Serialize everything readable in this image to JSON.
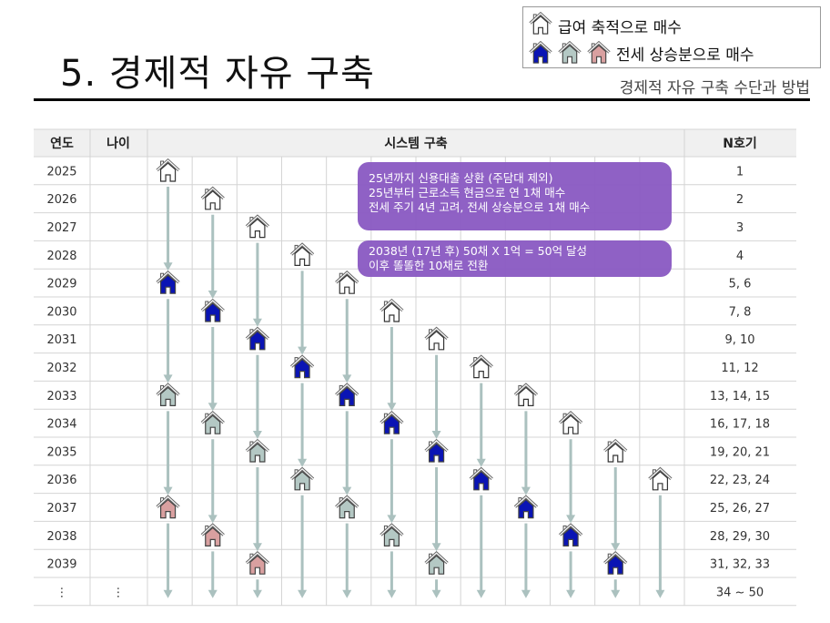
{
  "title": "5. 경제적 자유 구축",
  "subtitle": "경제적 자유 구축 수단과 방법",
  "legend": [
    {
      "icons": [
        "white"
      ],
      "label": "급여 축적으로 매수"
    },
    {
      "icons": [
        "blue",
        "gray",
        "pink"
      ],
      "label": "전세 상승분으로 매수"
    }
  ],
  "colors": {
    "white": "#ffffff",
    "blue": "#0a14b4",
    "gray": "#b4c8c4",
    "pink": "#d9a0a0",
    "arrow": "#abc1bf",
    "callout": "#8c5cc4",
    "header_bg": "#f0f0f0",
    "gridline": "#d4d4d4"
  },
  "table": {
    "headers": {
      "year": "연도",
      "age": "나이",
      "system": "시스템 구축",
      "n": "N호기"
    },
    "rows": [
      {
        "year": "2025",
        "age": "",
        "n": "1"
      },
      {
        "year": "2026",
        "age": "",
        "n": "2"
      },
      {
        "year": "2027",
        "age": "",
        "n": "3"
      },
      {
        "year": "2028",
        "age": "",
        "n": "4"
      },
      {
        "year": "2029",
        "age": "",
        "n": "5, 6"
      },
      {
        "year": "2030",
        "age": "",
        "n": "7, 8"
      },
      {
        "year": "2031",
        "age": "",
        "n": "9, 10"
      },
      {
        "year": "2032",
        "age": "",
        "n": "11, 12"
      },
      {
        "year": "2033",
        "age": "",
        "n": "13, 14, 15"
      },
      {
        "year": "2034",
        "age": "",
        "n": "16, 17, 18"
      },
      {
        "year": "2035",
        "age": "",
        "n": "19, 20, 21"
      },
      {
        "year": "2036",
        "age": "",
        "n": "22, 23, 24"
      },
      {
        "year": "2037",
        "age": "",
        "n": "25, 26, 27"
      },
      {
        "year": "2038",
        "age": "",
        "n": "28, 29, 30"
      },
      {
        "year": "2039",
        "age": "",
        "n": "31, 32, 33"
      },
      {
        "year": "⋮",
        "age": "⋮",
        "n": "34 ~ 50"
      }
    ],
    "system_columns": [
      [
        {
          "year": "2025",
          "type": "white"
        },
        {
          "year": "2029",
          "type": "blue"
        },
        {
          "year": "2033",
          "type": "gray"
        },
        {
          "year": "2037",
          "type": "pink"
        }
      ],
      [
        {
          "year": "2026",
          "type": "white"
        },
        {
          "year": "2030",
          "type": "blue"
        },
        {
          "year": "2034",
          "type": "gray"
        },
        {
          "year": "2038",
          "type": "pink"
        }
      ],
      [
        {
          "year": "2027",
          "type": "white"
        },
        {
          "year": "2031",
          "type": "blue"
        },
        {
          "year": "2035",
          "type": "gray"
        },
        {
          "year": "2039",
          "type": "pink"
        }
      ],
      [
        {
          "year": "2028",
          "type": "white"
        },
        {
          "year": "2032",
          "type": "blue"
        },
        {
          "year": "2036",
          "type": "gray"
        }
      ],
      [
        {
          "year": "2029",
          "type": "white"
        },
        {
          "year": "2033",
          "type": "blue"
        },
        {
          "year": "2037",
          "type": "gray"
        }
      ],
      [
        {
          "year": "2030",
          "type": "white"
        },
        {
          "year": "2034",
          "type": "blue"
        },
        {
          "year": "2038",
          "type": "gray"
        }
      ],
      [
        {
          "year": "2031",
          "type": "white"
        },
        {
          "year": "2035",
          "type": "blue"
        },
        {
          "year": "2039",
          "type": "gray"
        }
      ],
      [
        {
          "year": "2032",
          "type": "white"
        },
        {
          "year": "2036",
          "type": "blue"
        }
      ],
      [
        {
          "year": "2033",
          "type": "white"
        },
        {
          "year": "2037",
          "type": "blue"
        }
      ],
      [
        {
          "year": "2034",
          "type": "white"
        },
        {
          "year": "2038",
          "type": "blue"
        }
      ],
      [
        {
          "year": "2035",
          "type": "white"
        },
        {
          "year": "2039",
          "type": "blue"
        }
      ],
      [
        {
          "year": "2036",
          "type": "white"
        }
      ]
    ]
  },
  "callouts": [
    {
      "lines": [
        "25년까지 신용대출 상환 (주담대 제외)",
        "25년부터 근로소득 현금으로 연 1채 매수",
        "전세 주기 4년 고려, 전세 상승분으로 1채 매수"
      ]
    },
    {
      "lines": [
        "2038년 (17년  후) 50채 X 1억 = 50억 달성",
        "이후 똘똘한 10채로 전환"
      ]
    }
  ]
}
